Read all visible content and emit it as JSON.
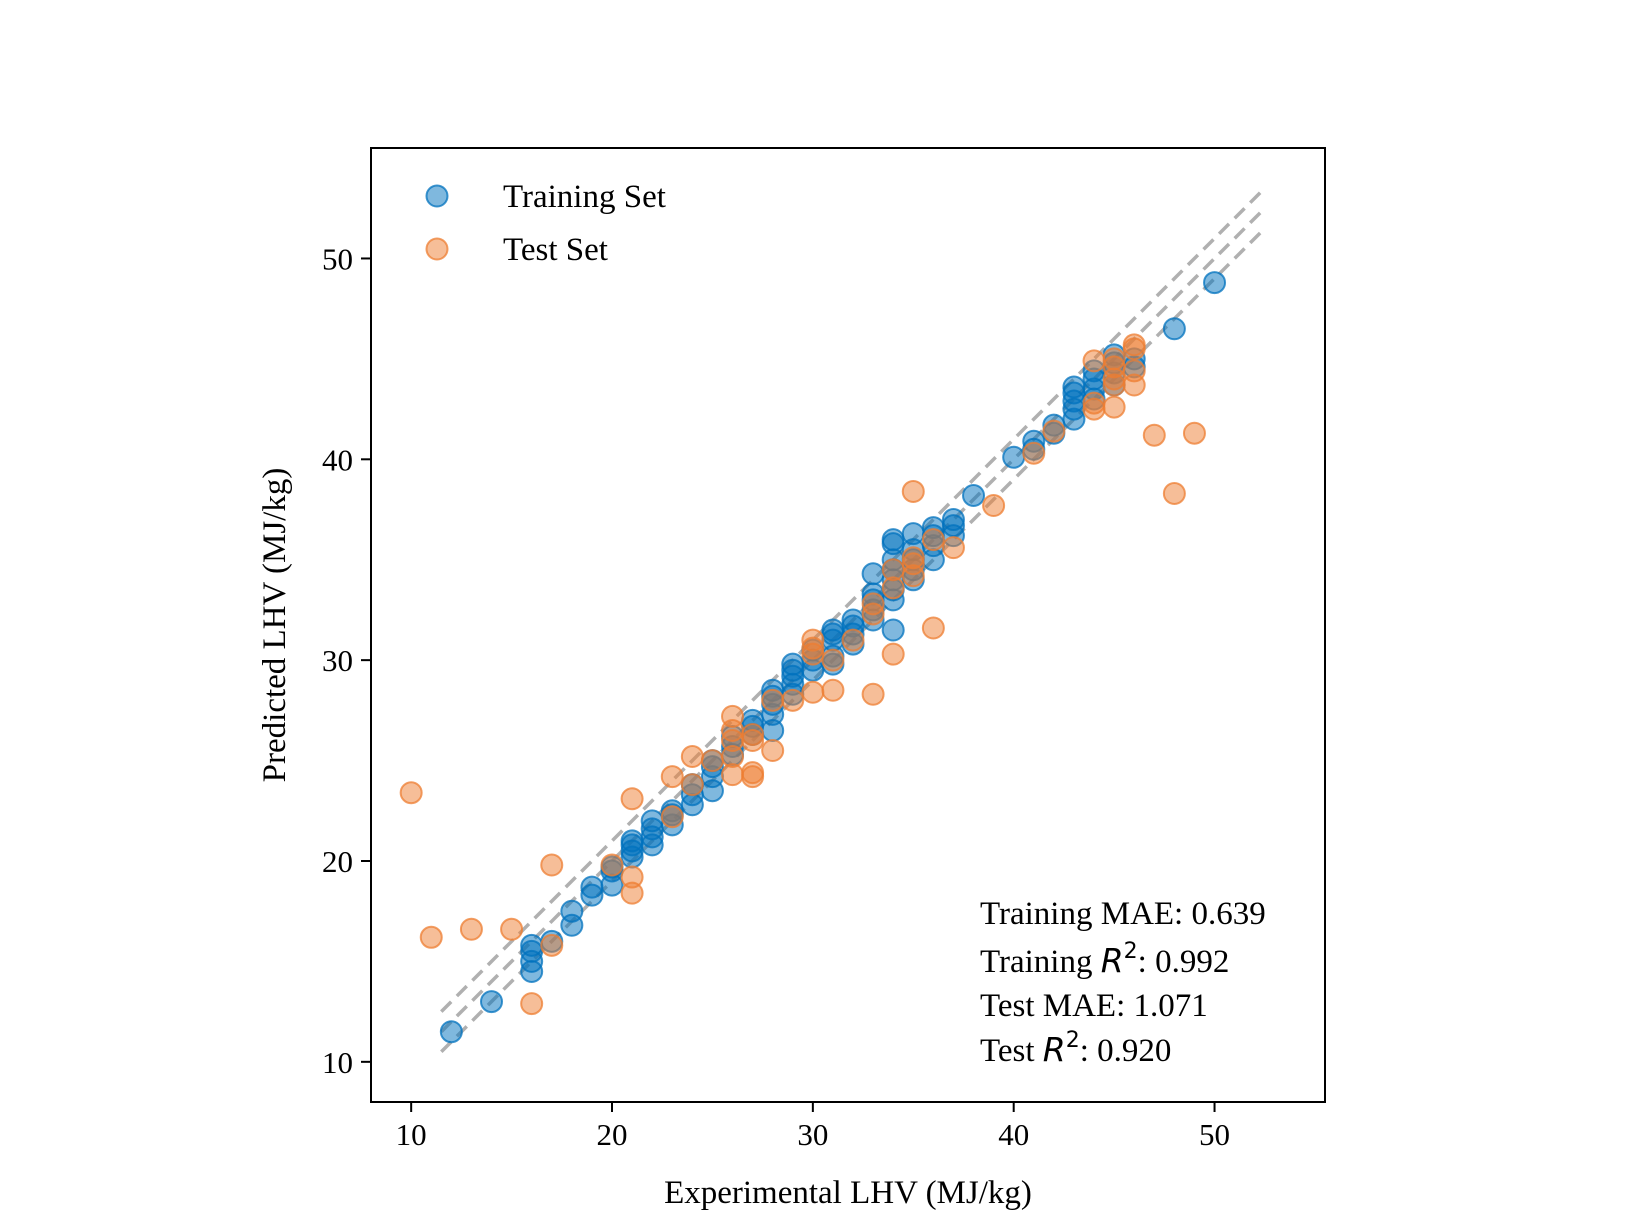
{
  "chart_data": {
    "type": "scatter",
    "xlabel": "Experimental LHV (MJ/kg)",
    "ylabel": "Predicted LHV (MJ/kg)",
    "xlim": [
      8,
      55.5
    ],
    "ylim": [
      8,
      55.5
    ],
    "xticks": [
      "10",
      "20",
      "30",
      "40",
      "50"
    ],
    "yticks": [
      "10",
      "20",
      "30",
      "40",
      "50"
    ],
    "legend": {
      "position": "top-left"
    },
    "grid": false,
    "reference_lines": {
      "style": "dashed",
      "color": "#b0b0b0",
      "x_range": [
        11.5,
        52.3
      ],
      "offsets": [
        -1,
        0,
        1
      ]
    },
    "stats": {
      "line1_prefix": "Training MAE: ",
      "line1_value": "0.639",
      "line2_prefix": "Training ",
      "line2_value": ": 0.992",
      "line3_prefix": "Test MAE: ",
      "line3_value": "1.071",
      "line4_prefix": "Test ",
      "line4_value": ": 0.920",
      "r_symbol": "R",
      "superscript": "2"
    },
    "series": [
      {
        "name": "Training Set",
        "color": "#0072bd",
        "points": [
          [
            12,
            11.5
          ],
          [
            14,
            13
          ],
          [
            16,
            14.5
          ],
          [
            16,
            15
          ],
          [
            16,
            15.5
          ],
          [
            16,
            15.8
          ],
          [
            17,
            16
          ],
          [
            18,
            16.8
          ],
          [
            18,
            17.5
          ],
          [
            19,
            18.3
          ],
          [
            19,
            18.7
          ],
          [
            20,
            18.8
          ],
          [
            20,
            19.5
          ],
          [
            20,
            19.7
          ],
          [
            21,
            20.2
          ],
          [
            21,
            20.5
          ],
          [
            21,
            20.8
          ],
          [
            21,
            21
          ],
          [
            22,
            20.8
          ],
          [
            22,
            21.2
          ],
          [
            22,
            21.6
          ],
          [
            22,
            22
          ],
          [
            23,
            21.8
          ],
          [
            23,
            22.3
          ],
          [
            23,
            22.5
          ],
          [
            24,
            22.8
          ],
          [
            24,
            23.3
          ],
          [
            24,
            23.8
          ],
          [
            25,
            23.5
          ],
          [
            25,
            24.2
          ],
          [
            25,
            24.7
          ],
          [
            25,
            25
          ],
          [
            26,
            25.3
          ],
          [
            26,
            25.7
          ],
          [
            26,
            26.2
          ],
          [
            27,
            26.3
          ],
          [
            27,
            26.7
          ],
          [
            27,
            27
          ],
          [
            28,
            26.5
          ],
          [
            28,
            27.3
          ],
          [
            28,
            27.8
          ],
          [
            28,
            28.2
          ],
          [
            28,
            28.5
          ],
          [
            29,
            28.3
          ],
          [
            29,
            28.8
          ],
          [
            29,
            29.2
          ],
          [
            29,
            29.5
          ],
          [
            29,
            29.8
          ],
          [
            30,
            29.5
          ],
          [
            30,
            30
          ],
          [
            30,
            30.5
          ],
          [
            31,
            29.8
          ],
          [
            31,
            30.2
          ],
          [
            31,
            31
          ],
          [
            31,
            31.3
          ],
          [
            31,
            31.5
          ],
          [
            32,
            30.8
          ],
          [
            32,
            31.3
          ],
          [
            32,
            31.7
          ],
          [
            32,
            32
          ],
          [
            33,
            32
          ],
          [
            33,
            32.5
          ],
          [
            33,
            33
          ],
          [
            33,
            33.3
          ],
          [
            33,
            34.3
          ],
          [
            34,
            31.5
          ],
          [
            34,
            33
          ],
          [
            34,
            33.5
          ],
          [
            34,
            34
          ],
          [
            34,
            34.5
          ],
          [
            34,
            35
          ],
          [
            34,
            35.8
          ],
          [
            34,
            36
          ],
          [
            35,
            34
          ],
          [
            35,
            34.5
          ],
          [
            35,
            35
          ],
          [
            35,
            35.5
          ],
          [
            35,
            36.3
          ],
          [
            36,
            35
          ],
          [
            36,
            35.7
          ],
          [
            36,
            36.2
          ],
          [
            36,
            36.6
          ],
          [
            37,
            36.2
          ],
          [
            37,
            36.7
          ],
          [
            37,
            37
          ],
          [
            38,
            38.2
          ],
          [
            40,
            40.1
          ],
          [
            41,
            40.5
          ],
          [
            41,
            40.9
          ],
          [
            42,
            41.3
          ],
          [
            42,
            41.7
          ],
          [
            43,
            42
          ],
          [
            43,
            42.5
          ],
          [
            43,
            42.9
          ],
          [
            43,
            43.3
          ],
          [
            43,
            43.6
          ],
          [
            44,
            43
          ],
          [
            44,
            43.5
          ],
          [
            44,
            44
          ],
          [
            44,
            44.4
          ],
          [
            45,
            43.7
          ],
          [
            45,
            44.3
          ],
          [
            45,
            44.8
          ],
          [
            45,
            45.2
          ],
          [
            46,
            44.6
          ],
          [
            46,
            45
          ],
          [
            48,
            46.5
          ],
          [
            50,
            48.8
          ]
        ]
      },
      {
        "name": "Test Set",
        "color": "#ed7d31",
        "points": [
          [
            10,
            23.4
          ],
          [
            11,
            16.2
          ],
          [
            13,
            16.6
          ],
          [
            15,
            16.6
          ],
          [
            16,
            12.9
          ],
          [
            17,
            15.8
          ],
          [
            17,
            19.8
          ],
          [
            20,
            19.8
          ],
          [
            21,
            18.4
          ],
          [
            21,
            19.2
          ],
          [
            21,
            23.1
          ],
          [
            23,
            22.2
          ],
          [
            23,
            24.2
          ],
          [
            24,
            23.8
          ],
          [
            24,
            25.2
          ],
          [
            25,
            25
          ],
          [
            26,
            24.3
          ],
          [
            26,
            25.2
          ],
          [
            26,
            26
          ],
          [
            26,
            26.5
          ],
          [
            26,
            27.2
          ],
          [
            27,
            24.2
          ],
          [
            27,
            24.4
          ],
          [
            27,
            26
          ],
          [
            27,
            26.3
          ],
          [
            28,
            25.5
          ],
          [
            28,
            28
          ],
          [
            29,
            28
          ],
          [
            30,
            28.4
          ],
          [
            30,
            30.3
          ],
          [
            30,
            30.6
          ],
          [
            30,
            31
          ],
          [
            31,
            28.5
          ],
          [
            31,
            30
          ],
          [
            32,
            31
          ],
          [
            33,
            28.3
          ],
          [
            33,
            32.3
          ],
          [
            33,
            32.8
          ],
          [
            34,
            30.3
          ],
          [
            34,
            33.6
          ],
          [
            34,
            34.5
          ],
          [
            35,
            34.2
          ],
          [
            35,
            34.8
          ],
          [
            35,
            35.1
          ],
          [
            35,
            38.4
          ],
          [
            36,
            31.6
          ],
          [
            36,
            36
          ],
          [
            37,
            35.6
          ],
          [
            39,
            37.7
          ],
          [
            41,
            40.3
          ],
          [
            42,
            41.4
          ],
          [
            44,
            42.5
          ],
          [
            44,
            42.8
          ],
          [
            44,
            44.9
          ],
          [
            45,
            42.6
          ],
          [
            45,
            43.7
          ],
          [
            45,
            44
          ],
          [
            45,
            44.6
          ],
          [
            45,
            45
          ],
          [
            46,
            43.7
          ],
          [
            46,
            44.4
          ],
          [
            46,
            45.5
          ],
          [
            46,
            45.7
          ],
          [
            47,
            41.2
          ],
          [
            48,
            38.3
          ],
          [
            49,
            41.3
          ]
        ]
      }
    ]
  }
}
